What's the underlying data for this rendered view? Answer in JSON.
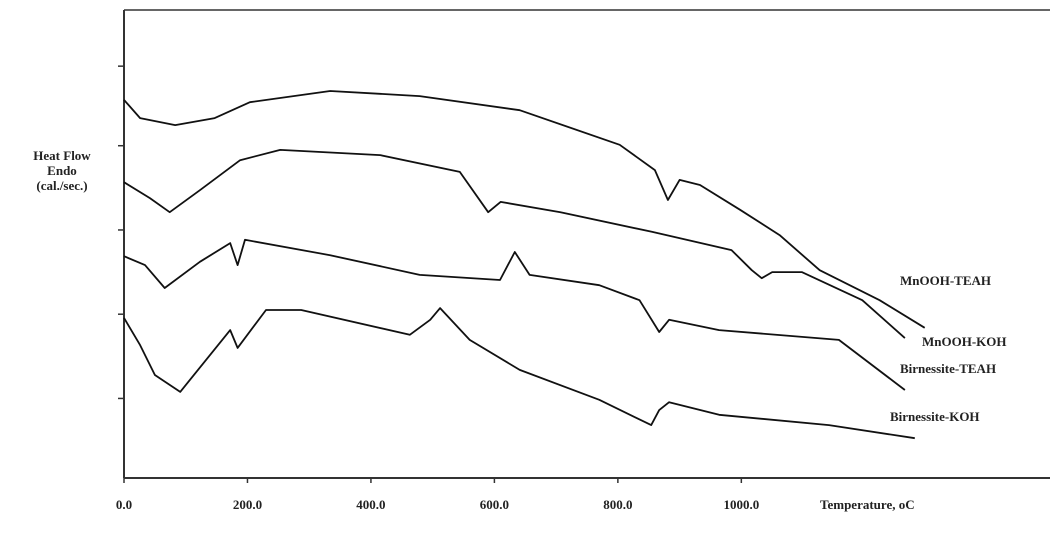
{
  "chart_data": {
    "type": "line",
    "y_label": [
      "Heat Flow",
      "Endo",
      "(cal./sec.)"
    ],
    "x_label": "Temperature, oC",
    "xlim": [
      0,
      1500
    ],
    "xticks": [
      {
        "value": 0,
        "label": "0.0"
      },
      {
        "value": 200,
        "label": "200.0"
      },
      {
        "value": 400,
        "label": "400.0"
      },
      {
        "value": 600,
        "label": "600.0"
      },
      {
        "value": 800,
        "label": "800.0"
      },
      {
        "value": 1000,
        "label": "1000.0"
      }
    ],
    "ylim": [
      0,
      100
    ],
    "yticks": [
      17,
      35,
      53,
      71,
      88
    ],
    "series": [
      {
        "name": "MnOOH-TEAH",
        "color": "#111111",
        "x": [
          0,
          26,
          83,
          147,
          204,
          334,
          479,
          641,
          803,
          860,
          881,
          900,
          933,
          998,
          1062,
          1127,
          1224,
          1297
        ],
        "values": [
          80.8,
          76.9,
          75.4,
          76.9,
          80.3,
          82.7,
          81.6,
          78.6,
          71.2,
          65.8,
          59.4,
          63.7,
          62.6,
          57.3,
          51.9,
          44.4,
          38.0,
          32.1
        ]
      },
      {
        "name": "MnOOH-KOH",
        "color": "#111111",
        "x": [
          0,
          42,
          74,
          123,
          188,
          253,
          415,
          544,
          590,
          610,
          707,
          855,
          984,
          1017,
          1033,
          1050,
          1098,
          1196,
          1265
        ],
        "values": [
          63.2,
          59.8,
          56.8,
          61.5,
          67.9,
          70.1,
          69.0,
          65.4,
          56.8,
          59.0,
          56.8,
          52.6,
          48.7,
          44.4,
          42.7,
          44.0,
          44.0,
          38.0,
          29.9
        ]
      },
      {
        "name": "Birnessite-TEAH",
        "color": "#111111",
        "x": [
          0,
          34,
          66,
          123,
          172,
          184,
          196,
          334,
          479,
          609,
          633,
          657,
          770,
          835,
          867,
          883,
          964,
          1158,
          1265
        ],
        "values": [
          47.4,
          45.5,
          40.6,
          46.2,
          50.2,
          45.5,
          50.9,
          47.6,
          43.4,
          42.3,
          48.3,
          43.4,
          41.2,
          38.0,
          31.2,
          33.8,
          31.6,
          29.5,
          18.8
        ]
      },
      {
        "name": "Birnessite-KOH",
        "color": "#111111",
        "x": [
          0,
          26,
          50,
          91,
          172,
          184,
          230,
          287,
          463,
          496,
          512,
          560,
          641,
          770,
          854,
          867,
          883,
          964,
          1142,
          1281
        ],
        "values": [
          34.2,
          28.4,
          22.0,
          18.4,
          31.6,
          27.8,
          35.9,
          35.9,
          30.6,
          33.8,
          36.3,
          29.5,
          23.1,
          16.7,
          11.3,
          14.5,
          16.2,
          13.5,
          11.3,
          8.5
        ]
      }
    ]
  }
}
